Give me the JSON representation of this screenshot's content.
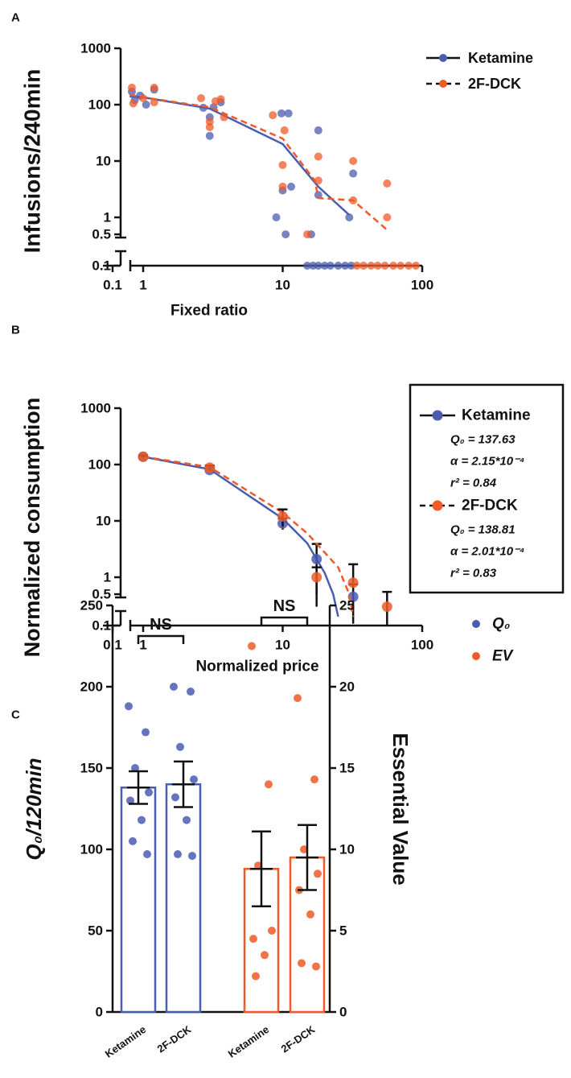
{
  "chart_data": [
    {
      "panel": "A",
      "type": "scatter",
      "xlabel": "Fixed ratio",
      "ylabel": "Infusions/240min",
      "log_x": true,
      "log_y": true,
      "axis_break": true,
      "legend": "upper right",
      "xlim": [
        0.1,
        100
      ],
      "ylim": [
        0.1,
        1000
      ],
      "xticks": [
        0.1,
        1,
        10,
        100
      ],
      "yticks": [
        0.1,
        0.5,
        1,
        10,
        100,
        1000
      ],
      "series": [
        {
          "name": "Ketamine",
          "color": "#4a5cb0",
          "line": "solid",
          "x": [
            0.83,
            0.87,
            0.95,
            1.05,
            1.2,
            2.7,
            3.0,
            3.0,
            3.2,
            3.6,
            9.0,
            9.8,
            10,
            10.5,
            11,
            11.5,
            16,
            18,
            18,
            30,
            32,
            15,
            16.5,
            18,
            20,
            22,
            25,
            28,
            31
          ],
          "values": [
            170,
            120,
            145,
            100,
            185,
            88,
            28,
            60,
            90,
            110,
            1,
            70,
            3,
            0.5,
            70,
            3.5,
            0.5,
            2.5,
            35,
            1,
            6,
            0.1,
            0.1,
            0.1,
            0.1,
            0.1,
            0.1,
            0.1,
            0.1
          ],
          "line_x": [
            0.8,
            1,
            3,
            10,
            18,
            30
          ],
          "line_values": [
            140,
            135,
            85,
            20,
            3.5,
            1.1
          ]
        },
        {
          "name": "2F-DCK",
          "color": "#f05a28",
          "line": "dashed",
          "x": [
            0.83,
            0.85,
            1.0,
            1.2,
            1.2,
            2.6,
            3.0,
            3.0,
            3.3,
            3.6,
            3.8,
            8.5,
            10,
            10,
            10.3,
            15,
            18,
            18,
            32,
            32,
            56,
            56,
            34,
            38,
            43,
            48,
            54,
            62,
            70,
            80,
            90
          ],
          "values": [
            200,
            105,
            130,
            110,
            200,
            130,
            40,
            50,
            115,
            125,
            60,
            65,
            3.5,
            8.5,
            35,
            0.5,
            12,
            4.5,
            10,
            2,
            4,
            1,
            0.1,
            0.1,
            0.1,
            0.1,
            0.1,
            0.1,
            0.1,
            0.1,
            0.1
          ],
          "line_x": [
            0.8,
            1,
            3,
            10,
            17,
            18,
            32,
            56
          ],
          "line_values": [
            150,
            135,
            90,
            25,
            4.5,
            2.2,
            2,
            0.6
          ]
        }
      ]
    },
    {
      "panel": "B",
      "type": "line",
      "xlabel": "Normalized price",
      "ylabel": "Normalized consumption",
      "log_x": true,
      "log_y": true,
      "axis_break": true,
      "legend": "right",
      "xlim": [
        0.1,
        100
      ],
      "ylim": [
        0.1,
        1000
      ],
      "xticks": [
        0.1,
        1,
        10,
        100
      ],
      "yticks": [
        0.1,
        0.5,
        1,
        10,
        100,
        1000
      ],
      "series": [
        {
          "name": "Ketamine",
          "color": "#4a5cb0",
          "line": "solid",
          "x": [
            1,
            3,
            10,
            17.5,
            32
          ],
          "values": [
            137,
            80,
            9,
            2.1,
            0.45
          ],
          "errors": [
            6,
            8,
            2,
            1.8,
            0.3
          ],
          "fit_x": [
            1,
            3,
            10,
            15,
            20,
            23,
            25
          ],
          "fit_values": [
            137,
            82,
            11,
            4,
            1.2,
            0.5,
            0.2
          ],
          "stats": [
            "Q₀ = 137.63",
            "α = 2.15*10⁻⁴",
            "r² = 0.84"
          ]
        },
        {
          "name": "2F-DCK",
          "color": "#f05a28",
          "line": "dashed",
          "x": [
            1,
            3,
            10,
            17.5,
            32,
            56
          ],
          "values": [
            138,
            88,
            12,
            1,
            0.8,
            0.3
          ],
          "errors": [
            6,
            8,
            4,
            0.5,
            0.9,
            0.25
          ],
          "fit_x": [
            1,
            3,
            10,
            15,
            25,
            30,
            32
          ],
          "fit_values": [
            138,
            90,
            14,
            6,
            1.5,
            0.5,
            0.2
          ],
          "stats": [
            "Q₀ = 138.81",
            "α = 2.01*10⁻⁴",
            "r² = 0.83"
          ]
        }
      ]
    },
    {
      "panel": "C",
      "type": "bar",
      "ylabel": "Q₀/120min",
      "y2label": "Essential Value",
      "legend": "upper right",
      "categories": [
        "Ketamine",
        "2F-DCK",
        "Ketamine",
        "2F-DCK"
      ],
      "ylim": [
        0,
        250
      ],
      "yticks": [
        0,
        50,
        100,
        150,
        200,
        250
      ],
      "y2lim": [
        0,
        25
      ],
      "y2ticks": [
        0,
        5,
        10,
        15,
        20,
        25
      ],
      "annotations": [
        "NS",
        "NS"
      ],
      "series": [
        {
          "name": "Q₀",
          "color": "#4a5cb0",
          "values": [
            138,
            140,
            null,
            null
          ],
          "errors": [
            10,
            14,
            null,
            null
          ],
          "points": [
            [
              188,
              172,
              150,
              135,
              130,
              118,
              105,
              97
            ],
            [
              200,
              197,
              163,
              143,
              132,
              118,
              97,
              96
            ],
            null,
            null
          ]
        },
        {
          "name": "EV",
          "color": "#f05a28",
          "axis": "y2",
          "values": [
            null,
            null,
            8.8,
            9.5
          ],
          "errors": [
            null,
            null,
            2.3,
            2
          ],
          "points": [
            null,
            null,
            [
              22.5,
              14,
              9,
              5,
              4.5,
              3.5,
              2.2
            ],
            [
              19.3,
              14.3,
              10,
              8.5,
              7.5,
              6,
              3,
              2.8
            ]
          ]
        }
      ]
    }
  ]
}
